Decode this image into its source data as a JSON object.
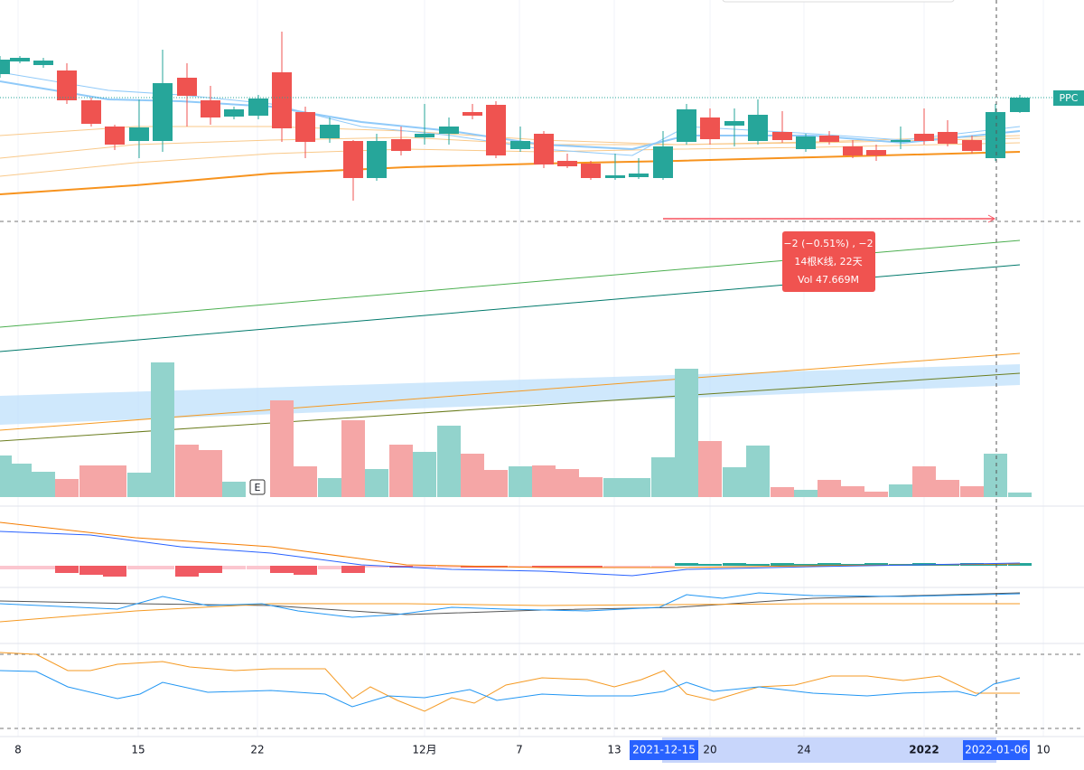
{
  "symbol_tag": "PPC",
  "earnings_marker": "E",
  "measure_tooltip": {
    "lines": [
      "−2 (−0.51%) , −2",
      "14根K线, 22天",
      "Vol 47.669M"
    ]
  },
  "time_axis": {
    "labels": [
      "8",
      "15",
      "22",
      "12月",
      "7",
      "13",
      "20",
      "24",
      "2022",
      "10"
    ],
    "range_start": "2021-12-15",
    "crosshair_date": "2022-01-06"
  }
}
